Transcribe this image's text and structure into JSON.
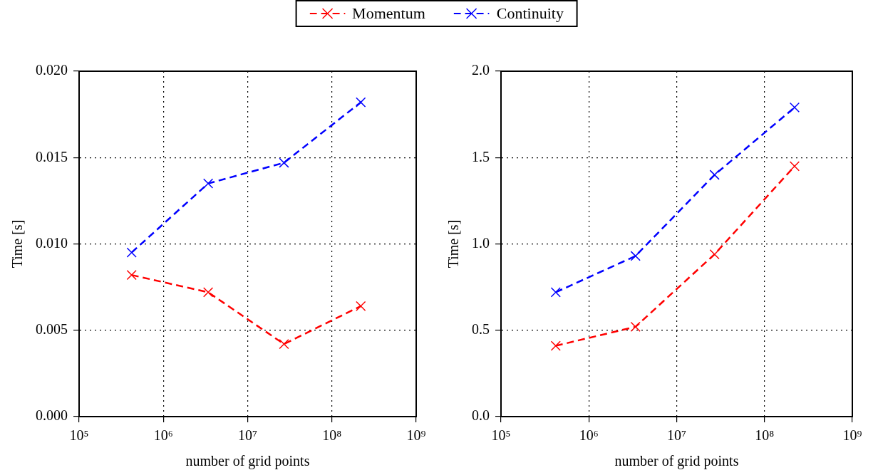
{
  "chart_data": [
    {
      "type": "line",
      "xlabel": "number of grid points",
      "ylabel": "Time [s]",
      "log": "x",
      "grid": true,
      "legend": "top",
      "marker": "cross",
      "line_style": "dashed",
      "x": [
        420000,
        3400000,
        27000000,
        220000000
      ],
      "xlim": [
        100000,
        1000000000
      ],
      "xticks": [
        {
          "value": 100000,
          "label": "10⁵"
        },
        {
          "value": 1000000,
          "label": "10⁶"
        },
        {
          "value": 10000000,
          "label": "10⁷"
        },
        {
          "value": 100000000,
          "label": "10⁸"
        },
        {
          "value": 1000000000,
          "label": "10⁹"
        }
      ],
      "ylim": [
        0,
        0.02
      ],
      "yticks": [
        {
          "value": 0,
          "label": "0.000"
        },
        {
          "value": 0.005,
          "label": "0.005"
        },
        {
          "value": 0.01,
          "label": "0.010"
        },
        {
          "value": 0.015,
          "label": "0.015"
        },
        {
          "value": 0.02,
          "label": "0.020"
        }
      ],
      "series": [
        {
          "name": "Momentum",
          "color": "#ff0000",
          "values": [
            0.0082,
            0.0072,
            0.0042,
            0.0064
          ]
        },
        {
          "name": "Continuity",
          "color": "#0000ff",
          "values": [
            0.0095,
            0.0135,
            0.0147,
            0.0182
          ]
        }
      ]
    },
    {
      "type": "line",
      "xlabel": "number of grid points",
      "ylabel": "Time [s]",
      "log": "x",
      "grid": true,
      "legend": "top",
      "marker": "cross",
      "line_style": "dashed",
      "x": [
        420000,
        3400000,
        27000000,
        220000000
      ],
      "xlim": [
        100000,
        1000000000
      ],
      "xticks": [
        {
          "value": 100000,
          "label": "10⁵"
        },
        {
          "value": 1000000,
          "label": "10⁶"
        },
        {
          "value": 10000000,
          "label": "10⁷"
        },
        {
          "value": 100000000,
          "label": "10⁸"
        },
        {
          "value": 1000000000,
          "label": "10⁹"
        }
      ],
      "ylim": [
        0,
        2
      ],
      "yticks": [
        {
          "value": 0,
          "label": "0.0"
        },
        {
          "value": 0.5,
          "label": "0.5"
        },
        {
          "value": 1,
          "label": "1.0"
        },
        {
          "value": 1.5,
          "label": "1.5"
        },
        {
          "value": 2,
          "label": "2.0"
        }
      ],
      "series": [
        {
          "name": "Momentum",
          "color": "#ff0000",
          "values": [
            0.41,
            0.52,
            0.94,
            1.45
          ]
        },
        {
          "name": "Continuity",
          "color": "#0000ff",
          "values": [
            0.72,
            0.93,
            1.4,
            1.79
          ]
        }
      ]
    }
  ]
}
